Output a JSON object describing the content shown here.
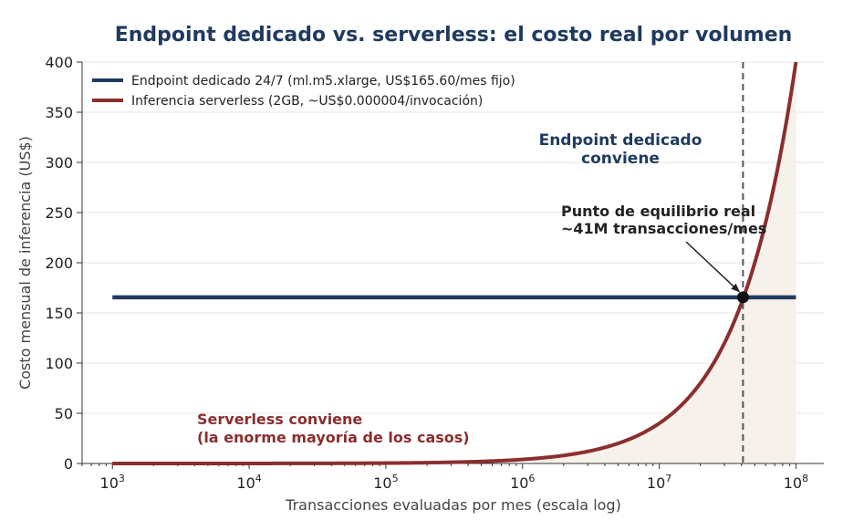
{
  "chart_data": {
    "type": "line",
    "title": "Endpoint dedicado vs. serverless: el costo real por volumen",
    "xlabel": "Transacciones evaluadas por mes (escala log)",
    "ylabel": "Costo mensual de inferencia (US$)",
    "x_scale": "log",
    "xlim": [
      600,
      160000000
    ],
    "ylim": [
      0,
      400
    ],
    "x_ticks": [
      {
        "value": 1000,
        "base": "10",
        "exp": "3"
      },
      {
        "value": 10000,
        "base": "10",
        "exp": "4"
      },
      {
        "value": 100000,
        "base": "10",
        "exp": "5"
      },
      {
        "value": 1000000,
        "base": "10",
        "exp": "6"
      },
      {
        "value": 10000000,
        "base": "10",
        "exp": "7"
      },
      {
        "value": 100000000,
        "base": "10",
        "exp": "8"
      }
    ],
    "y_ticks": [
      "0",
      "50",
      "100",
      "150",
      "200",
      "250",
      "300",
      "350",
      "400"
    ],
    "grid": "horizontal",
    "legend_position": "top-left",
    "series": [
      {
        "name": "Endpoint dedicado 24/7 (ml.m5.xlarge, US$165.60/mes fijo)",
        "color": "#1f3a5f",
        "x": [
          1000,
          100000000
        ],
        "y": [
          165.6,
          165.6
        ]
      },
      {
        "name": "Inferencia serverless (2GB, ~US$0.000004/invocación)",
        "color": "#8b2e2e",
        "x": [
          1000,
          10000,
          100000,
          1000000,
          2000000,
          5000000,
          10000000,
          20000000,
          41000000,
          60000000,
          80000000,
          100000000
        ],
        "y": [
          0.004,
          0.04,
          0.4,
          4,
          8,
          20,
          40,
          80,
          165.6,
          242,
          323,
          400
        ]
      }
    ],
    "breakeven": {
      "x": 41000000,
      "y": 165.6
    },
    "annotations": {
      "dedicated": [
        "Endpoint dedicado",
        "conviene"
      ],
      "serverless": [
        "Serverless conviene",
        "(la enorme mayoría de los casos)"
      ],
      "breakeven": [
        "Punto de equilibrio real",
        "~41M transacciones/mes"
      ]
    }
  }
}
